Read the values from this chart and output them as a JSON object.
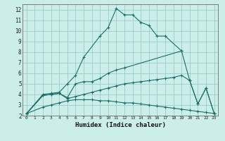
{
  "xlabel": "Humidex (Indice chaleur)",
  "background_color": "#cceee8",
  "grid_color": "#99cccc",
  "line_color": "#1a6e6a",
  "xlim": [
    -0.5,
    23.5
  ],
  "ylim": [
    2,
    12.5
  ],
  "xticks": [
    0,
    1,
    2,
    3,
    4,
    5,
    6,
    7,
    8,
    9,
    10,
    11,
    12,
    13,
    14,
    15,
    16,
    17,
    18,
    19,
    20,
    21,
    22,
    23
  ],
  "yticks": [
    2,
    3,
    4,
    5,
    6,
    7,
    8,
    9,
    10,
    11,
    12
  ],
  "lines": [
    {
      "x": [
        0,
        2,
        3,
        4,
        5,
        6,
        7,
        9,
        10,
        11,
        12,
        13,
        14,
        15,
        16,
        17,
        19
      ],
      "y": [
        2.2,
        4.0,
        4.1,
        4.2,
        5.0,
        5.8,
        7.5,
        9.5,
        10.3,
        12.1,
        11.5,
        11.5,
        10.8,
        10.5,
        9.5,
        9.5,
        8.1
      ]
    },
    {
      "x": [
        0,
        2,
        3,
        4,
        5,
        6,
        7,
        8,
        9,
        10,
        11,
        12,
        19,
        20,
        21,
        22,
        23
      ],
      "y": [
        2.2,
        3.9,
        4.0,
        4.1,
        3.7,
        5.0,
        5.2,
        5.2,
        5.5,
        6.0,
        6.3,
        6.5,
        8.1,
        5.3,
        3.1,
        4.6,
        2.2
      ]
    },
    {
      "x": [
        0,
        2,
        3,
        4,
        5,
        6,
        7,
        8,
        9,
        10,
        11,
        12,
        13,
        14,
        15,
        16,
        17,
        18,
        19,
        20,
        21,
        22,
        23
      ],
      "y": [
        2.2,
        3.9,
        4.0,
        4.1,
        3.6,
        3.8,
        4.0,
        4.2,
        4.4,
        4.6,
        4.8,
        5.0,
        5.1,
        5.2,
        5.3,
        5.4,
        5.5,
        5.6,
        5.8,
        5.3,
        3.1,
        4.6,
        2.2
      ]
    },
    {
      "x": [
        0,
        2,
        3,
        4,
        5,
        6,
        7,
        8,
        9,
        10,
        11,
        12,
        13,
        14,
        15,
        16,
        17,
        18,
        19,
        20,
        21,
        22,
        23
      ],
      "y": [
        2.2,
        2.8,
        3.0,
        3.2,
        3.4,
        3.5,
        3.5,
        3.5,
        3.4,
        3.4,
        3.3,
        3.2,
        3.2,
        3.1,
        3.0,
        2.9,
        2.8,
        2.7,
        2.6,
        2.5,
        2.4,
        2.3,
        2.2
      ]
    }
  ]
}
